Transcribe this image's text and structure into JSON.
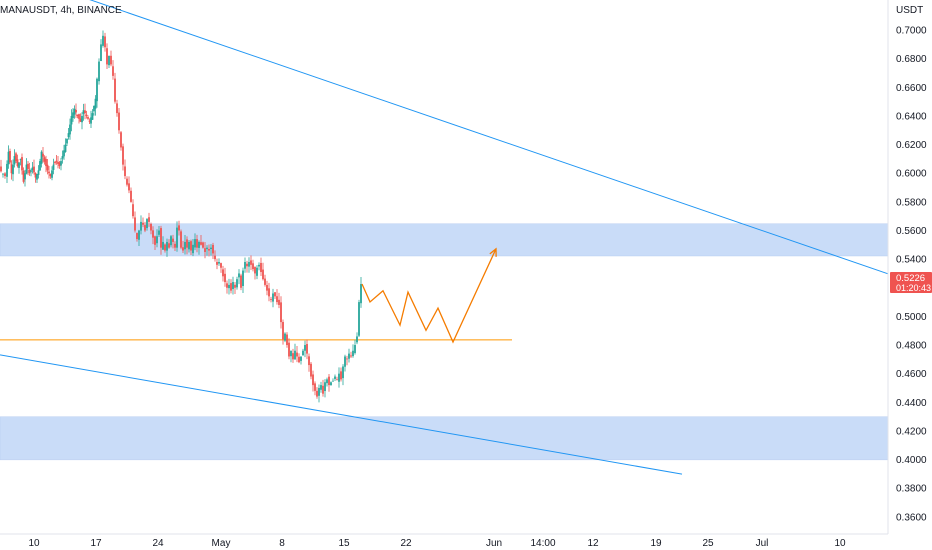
{
  "header": {
    "symbol_title": "MANAUSDT, 4h, BINANCE",
    "currency": "USDT"
  },
  "colors": {
    "up": "#26a69a",
    "down": "#ef5350",
    "zone": "#c9dcf8",
    "trendline": "#2196f3",
    "support": "#ff9800",
    "projection": "#f57c00",
    "price_label_bg": "#ef5350"
  },
  "price_label": {
    "price": "0.5226",
    "countdown": "01:20:43"
  },
  "chart_data": {
    "type": "candlestick",
    "ylim": [
      0.348,
      0.721
    ],
    "y_ticks": [
      "0.7000",
      "0.6800",
      "0.6600",
      "0.6400",
      "0.6200",
      "0.6000",
      "0.5800",
      "0.5600",
      "0.5400",
      "0.5200",
      "0.5000",
      "0.4800",
      "0.4600",
      "0.4400",
      "0.4200",
      "0.4000",
      "0.3800",
      "0.3600"
    ],
    "x_ticks": [
      "10",
      "17",
      "24",
      "May",
      "8",
      "15",
      "22",
      "Jun",
      "14:00",
      "12",
      "19",
      "25",
      "Jul",
      "10"
    ],
    "close_path": [
      [
        0,
        0.603
      ],
      [
        6,
        0.598
      ],
      [
        9,
        0.615
      ],
      [
        12,
        0.6
      ],
      [
        15,
        0.612
      ],
      [
        18,
        0.605
      ],
      [
        21,
        0.61
      ],
      [
        24,
        0.594
      ],
      [
        27,
        0.606
      ],
      [
        30,
        0.6
      ],
      [
        33,
        0.604
      ],
      [
        36,
        0.597
      ],
      [
        39,
        0.602
      ],
      [
        42,
        0.615
      ],
      [
        45,
        0.608
      ],
      [
        48,
        0.602
      ],
      [
        51,
        0.598
      ],
      [
        54,
        0.606
      ],
      [
        57,
        0.608
      ],
      [
        60,
        0.605
      ],
      [
        63,
        0.612
      ],
      [
        66,
        0.62
      ],
      [
        69,
        0.628
      ],
      [
        72,
        0.64
      ],
      [
        75,
        0.645
      ],
      [
        78,
        0.64
      ],
      [
        81,
        0.636
      ],
      [
        84,
        0.644
      ],
      [
        87,
        0.64
      ],
      [
        90,
        0.636
      ],
      [
        93,
        0.642
      ],
      [
        96,
        0.652
      ],
      [
        98,
        0.666
      ],
      [
        100,
        0.678
      ],
      [
        102,
        0.69
      ],
      [
        104,
        0.696
      ],
      [
        106,
        0.688
      ],
      [
        108,
        0.676
      ],
      [
        110,
        0.682
      ],
      [
        112,
        0.676
      ],
      [
        114,
        0.668
      ],
      [
        116,
        0.65
      ],
      [
        118,
        0.642
      ],
      [
        120,
        0.63
      ],
      [
        122,
        0.618
      ],
      [
        124,
        0.606
      ],
      [
        126,
        0.598
      ],
      [
        128,
        0.592
      ],
      [
        130,
        0.588
      ],
      [
        132,
        0.58
      ],
      [
        134,
        0.57
      ],
      [
        136,
        0.56
      ],
      [
        138,
        0.554
      ],
      [
        140,
        0.56
      ],
      [
        142,
        0.566
      ],
      [
        144,
        0.564
      ],
      [
        146,
        0.56
      ],
      [
        148,
        0.568
      ],
      [
        150,
        0.566
      ],
      [
        152,
        0.56
      ],
      [
        154,
        0.555
      ],
      [
        156,
        0.55
      ],
      [
        158,
        0.556
      ],
      [
        160,
        0.56
      ],
      [
        162,
        0.548
      ],
      [
        164,
        0.552
      ],
      [
        166,
        0.546
      ],
      [
        168,
        0.552
      ],
      [
        170,
        0.548
      ],
      [
        172,
        0.556
      ],
      [
        174,
        0.552
      ],
      [
        176,
        0.548
      ],
      [
        178,
        0.562
      ],
      [
        180,
        0.56
      ],
      [
        182,
        0.548
      ],
      [
        184,
        0.546
      ],
      [
        186,
        0.552
      ],
      [
        188,
        0.548
      ],
      [
        190,
        0.552
      ],
      [
        192,
        0.546
      ],
      [
        194,
        0.55
      ],
      [
        196,
        0.554
      ],
      [
        198,
        0.548
      ],
      [
        200,
        0.552
      ],
      [
        202,
        0.55
      ],
      [
        204,
        0.548
      ],
      [
        206,
        0.545
      ],
      [
        208,
        0.548
      ],
      [
        210,
        0.546
      ],
      [
        212,
        0.548
      ],
      [
        214,
        0.544
      ],
      [
        216,
        0.54
      ],
      [
        218,
        0.536
      ],
      [
        220,
        0.538
      ],
      [
        222,
        0.534
      ],
      [
        224,
        0.528
      ],
      [
        226,
        0.524
      ],
      [
        228,
        0.52
      ],
      [
        230,
        0.522
      ],
      [
        232,
        0.518
      ],
      [
        234,
        0.524
      ],
      [
        236,
        0.52
      ],
      [
        238,
        0.526
      ],
      [
        240,
        0.53
      ],
      [
        242,
        0.52
      ],
      [
        244,
        0.532
      ],
      [
        246,
        0.538
      ],
      [
        248,
        0.535
      ],
      [
        250,
        0.538
      ],
      [
        252,
        0.536
      ],
      [
        254,
        0.533
      ],
      [
        256,
        0.53
      ],
      [
        258,
        0.534
      ],
      [
        260,
        0.536
      ],
      [
        262,
        0.531
      ],
      [
        264,
        0.526
      ],
      [
        266,
        0.522
      ],
      [
        268,
        0.518
      ],
      [
        270,
        0.514
      ],
      [
        272,
        0.512
      ],
      [
        274,
        0.516
      ],
      [
        276,
        0.514
      ],
      [
        278,
        0.51
      ],
      [
        280,
        0.508
      ],
      [
        282,
        0.496
      ],
      [
        284,
        0.484
      ],
      [
        286,
        0.488
      ],
      [
        288,
        0.48
      ],
      [
        290,
        0.472
      ],
      [
        292,
        0.476
      ],
      [
        294,
        0.47
      ],
      [
        296,
        0.476
      ],
      [
        298,
        0.472
      ],
      [
        300,
        0.468
      ],
      [
        302,
        0.472
      ],
      [
        304,
        0.476
      ],
      [
        306,
        0.48
      ],
      [
        308,
        0.474
      ],
      [
        310,
        0.466
      ],
      [
        312,
        0.458
      ],
      [
        314,
        0.452
      ],
      [
        316,
        0.448
      ],
      [
        318,
        0.444
      ],
      [
        320,
        0.45
      ],
      [
        322,
        0.452
      ],
      [
        324,
        0.446
      ],
      [
        326,
        0.454
      ],
      [
        328,
        0.456
      ],
      [
        330,
        0.452
      ],
      [
        332,
        0.454
      ],
      [
        334,
        0.455
      ],
      [
        336,
        0.458
      ],
      [
        338,
        0.456
      ],
      [
        340,
        0.46
      ],
      [
        342,
        0.456
      ],
      [
        344,
        0.465
      ],
      [
        346,
        0.472
      ],
      [
        348,
        0.47
      ],
      [
        350,
        0.474
      ],
      [
        352,
        0.472
      ],
      [
        354,
        0.476
      ],
      [
        356,
        0.48
      ],
      [
        358,
        0.486
      ],
      [
        360,
        0.51
      ],
      [
        362,
        0.5226
      ]
    ],
    "resistance_zone": [
      0.5422,
      0.5647
    ],
    "support_zone": [
      0.3998,
      0.4299
    ],
    "support_line": 0.4836,
    "upper_trendline": [
      [
        0,
        0.7428
      ],
      [
        932,
        0.5192
      ]
    ],
    "lower_trendline": [
      [
        0,
        0.4731
      ],
      [
        682,
        0.3898
      ]
    ],
    "projection_path": [
      [
        362,
        0.5226
      ],
      [
        370,
        0.5101
      ],
      [
        383,
        0.5179
      ],
      [
        400,
        0.4939
      ],
      [
        408,
        0.517
      ],
      [
        426,
        0.4903
      ],
      [
        438,
        0.5058
      ],
      [
        453,
        0.4821
      ],
      [
        496,
        0.5472
      ]
    ]
  }
}
